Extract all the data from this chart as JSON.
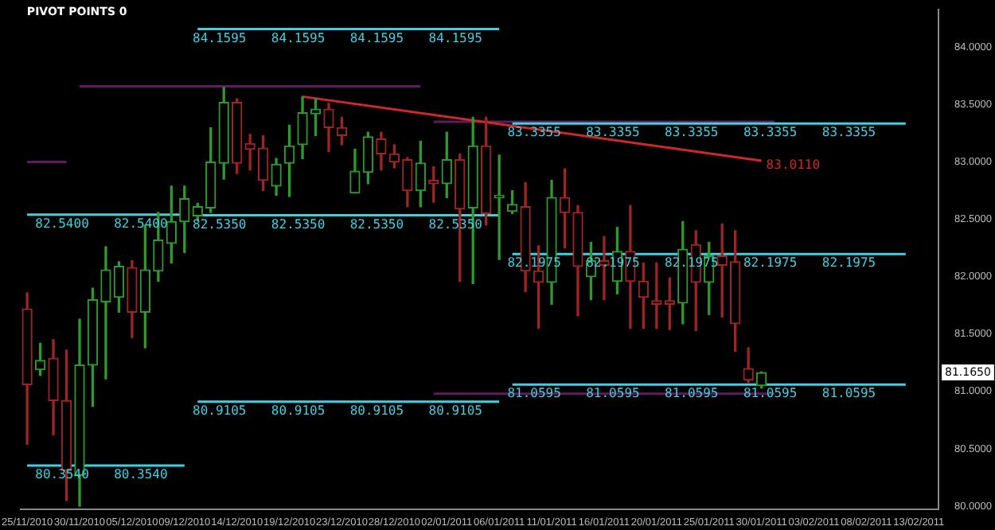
{
  "chart_data": {
    "type": "candlestick",
    "title": "PIVOT POINTS 0",
    "categories": [
      "25/11/2010",
      null,
      null,
      null,
      "30/11/2010",
      null,
      null,
      null,
      "05/12/2010",
      null,
      null,
      null,
      "09/12/2010",
      null,
      null,
      null,
      "14/12/2010",
      null,
      null,
      null,
      "19/12/2010",
      null,
      null,
      null,
      "23/12/2010",
      null,
      null,
      null,
      "28/12/2010",
      null,
      null,
      null,
      "02/01/2011",
      null,
      null,
      null,
      "06/01/2011",
      null,
      null,
      null,
      "11/01/2011",
      null,
      null,
      null,
      "16/01/2011",
      null,
      null,
      null,
      "20/01/2011",
      null,
      null,
      null,
      "25/01/2011",
      null,
      null,
      null,
      "30/01/2011",
      null,
      null,
      null,
      "03/02/2011",
      null,
      null,
      null,
      "08/02/2011",
      null,
      null,
      null,
      "13/02/2011",
      null
    ],
    "ohlc": [
      [
        81.72,
        81.86,
        80.54,
        81.06
      ],
      [
        81.19,
        81.42,
        81.14,
        81.27
      ],
      [
        81.29,
        81.45,
        80.62,
        80.92
      ],
      [
        80.92,
        81.36,
        80.05,
        80.31
      ],
      [
        80.27,
        81.63,
        80.0,
        81.23
      ],
      [
        81.23,
        81.9,
        80.87,
        81.8
      ],
      [
        81.78,
        82.26,
        81.11,
        82.06
      ],
      [
        81.82,
        82.13,
        81.69,
        82.09
      ],
      [
        82.08,
        82.14,
        81.47,
        81.69
      ],
      [
        81.69,
        82.45,
        81.38,
        82.06
      ],
      [
        82.05,
        82.56,
        81.96,
        82.32
      ],
      [
        82.29,
        82.79,
        82.12,
        82.48
      ],
      [
        82.48,
        82.79,
        82.21,
        82.68
      ],
      [
        82.53,
        82.64,
        82.49,
        82.61
      ],
      [
        82.6,
        83.3,
        82.56,
        83.0
      ],
      [
        82.99,
        83.65,
        82.85,
        83.52
      ],
      [
        83.52,
        83.55,
        82.9,
        82.99
      ],
      [
        83.16,
        83.24,
        82.93,
        83.11
      ],
      [
        83.12,
        83.23,
        82.75,
        82.84
      ],
      [
        82.79,
        83.03,
        82.71,
        82.98
      ],
      [
        82.99,
        83.32,
        82.7,
        83.14
      ],
      [
        83.15,
        83.57,
        83.03,
        83.43
      ],
      [
        83.42,
        83.55,
        83.23,
        83.46
      ],
      [
        83.46,
        83.51,
        83.09,
        83.3
      ],
      [
        83.3,
        83.39,
        83.15,
        83.23
      ],
      [
        82.73,
        83.11,
        82.73,
        82.92
      ],
      [
        82.91,
        83.26,
        82.81,
        83.22
      ],
      [
        83.2,
        83.26,
        82.93,
        83.07
      ],
      [
        83.07,
        83.15,
        82.95,
        83.0
      ],
      [
        83.02,
        83.04,
        82.61,
        82.75
      ],
      [
        82.75,
        83.18,
        82.61,
        82.99
      ],
      [
        82.84,
        82.96,
        82.65,
        82.81
      ],
      [
        82.81,
        83.26,
        82.69,
        83.02
      ],
      [
        83.02,
        83.07,
        81.96,
        82.59
      ],
      [
        82.6,
        83.39,
        81.94,
        83.14
      ],
      [
        83.14,
        83.39,
        82.45,
        82.55
      ],
      [
        82.69,
        83.06,
        82.15,
        82.71
      ],
      [
        82.57,
        82.75,
        82.55,
        82.63
      ],
      [
        82.61,
        82.82,
        81.87,
        82.05
      ],
      [
        82.05,
        82.27,
        81.55,
        81.95
      ],
      [
        81.95,
        82.84,
        81.76,
        82.69
      ],
      [
        82.69,
        82.94,
        82.25,
        82.56
      ],
      [
        82.56,
        82.62,
        81.66,
        82.09
      ],
      [
        82.0,
        82.3,
        81.8,
        82.14
      ],
      [
        82.14,
        82.35,
        81.8,
        82.1
      ],
      [
        81.96,
        82.43,
        81.85,
        82.22
      ],
      [
        82.22,
        82.62,
        81.55,
        81.96
      ],
      [
        81.96,
        82.12,
        81.55,
        81.82
      ],
      [
        81.79,
        82.12,
        81.55,
        81.76
      ],
      [
        81.79,
        81.99,
        81.54,
        81.76
      ],
      [
        81.77,
        82.48,
        81.59,
        82.24
      ],
      [
        82.28,
        82.4,
        81.53,
        81.95
      ],
      [
        81.95,
        82.3,
        81.67,
        82.18
      ],
      [
        82.18,
        82.46,
        81.65,
        82.1
      ],
      [
        82.13,
        82.4,
        81.35,
        81.59
      ],
      [
        81.2,
        81.38,
        81.08,
        81.1
      ],
      [
        81.05,
        81.17,
        81.03,
        81.165
      ],
      null,
      null,
      null,
      null,
      null,
      null,
      null,
      null,
      null,
      null,
      null,
      null,
      null
    ],
    "colors": [
      "#a02424",
      "#2e9a2e",
      "#a02424",
      "#a02424",
      "#2e9a2e",
      "#2e9a2e",
      "#2e9a2e",
      "#2e9a2e",
      "#a02424",
      "#2e9a2e",
      "#2e9a2e",
      "#2e9a2e",
      "#2e9a2e",
      "#2e9a2e",
      "#2e9a2e",
      "#2e9a2e",
      "#a02424",
      "#a02424",
      "#a02424",
      "#2e9a2e",
      "#2e9a2e",
      "#2e9a2e",
      "#2e9a2e",
      "#a02424",
      "#a02424",
      "#2e9a2e",
      "#2e9a2e",
      "#a02424",
      "#a02424",
      "#a02424",
      "#2e9a2e",
      "#a02424",
      "#2e9a2e",
      "#a02424",
      "#2e9a2e",
      "#a02424",
      "#2e9a2e",
      "#2e9a2e",
      "#a02424",
      "#a02424",
      "#2e9a2e",
      "#a02424",
      "#a02424",
      "#2e9a2e",
      "#a02424",
      "#2e9a2e",
      "#a02424",
      "#a02424",
      "#a02424",
      "#a02424",
      "#2e9a2e",
      "#a02424",
      "#2e9a2e",
      "#a02424",
      "#a02424",
      "#a02424",
      "#2e9a2e",
      null,
      null,
      null,
      null,
      null,
      null,
      null,
      null,
      null,
      null,
      null,
      null,
      null
    ],
    "ylim": [
      79.97,
      84.33
    ],
    "yticks": [
      {
        "value": 80,
        "label": "80.0000"
      },
      {
        "value": 80.5,
        "label": "80.5000"
      },
      {
        "value": 81,
        "label": "81.0000"
      },
      {
        "value": 81.5,
        "label": "81.5000"
      },
      {
        "value": 82,
        "label": "82.0000"
      },
      {
        "value": 82.5,
        "label": "82.5000"
      },
      {
        "value": 83,
        "label": "83.0000"
      },
      {
        "value": 83.5,
        "label": "83.5000"
      },
      {
        "value": 84,
        "label": "84.0000"
      }
    ],
    "grid": false,
    "legend": false,
    "annotations": [
      {
        "text": "81.1650",
        "y": 81.165
      }
    ],
    "series": [
      {
        "type": "line",
        "color": "#40d0e0",
        "values": [
          82.54,
          82.54,
          82.54,
          82.54,
          82.54,
          82.54,
          82.54,
          82.54,
          82.54,
          82.54,
          82.54,
          82.54,
          82.54,
          null,
          null,
          null,
          null,
          null,
          null,
          null,
          null,
          null,
          null,
          null,
          null,
          null,
          null,
          null,
          null,
          null,
          null,
          null,
          null,
          null,
          null,
          null,
          null,
          null,
          null,
          null,
          null,
          null,
          null,
          null,
          null,
          null,
          null,
          null,
          null,
          null,
          null,
          null,
          null,
          null,
          null,
          null,
          null,
          null,
          null,
          null,
          null,
          null,
          null,
          null,
          null,
          null,
          null,
          null,
          null,
          null
        ],
        "value_labels": [
          null,
          "82.5400",
          null,
          null,
          null,
          null,
          null,
          "82.5400",
          null,
          null,
          null,
          null,
          null,
          null,
          null,
          null,
          null,
          null,
          null,
          null,
          null,
          null,
          null,
          null,
          null,
          null,
          null,
          null,
          null,
          null,
          null,
          null,
          null,
          null,
          null,
          null,
          null,
          null,
          null,
          null,
          null,
          null,
          null,
          null,
          null,
          null,
          null,
          null,
          null,
          null,
          null,
          null,
          null,
          null,
          null,
          null,
          null,
          null,
          null,
          null,
          null,
          null,
          null,
          null,
          null,
          null,
          null,
          null,
          null,
          null
        ]
      },
      {
        "type": "line",
        "color": "#40d0e0",
        "values": [
          80.354,
          80.354,
          80.354,
          80.354,
          80.354,
          80.354,
          80.354,
          80.354,
          80.354,
          80.354,
          80.354,
          80.354,
          80.354,
          null,
          null,
          null,
          null,
          null,
          null,
          null,
          null,
          null,
          null,
          null,
          null,
          null,
          null,
          null,
          null,
          null,
          null,
          null,
          null,
          null,
          null,
          null,
          null,
          null,
          null,
          null,
          null,
          null,
          null,
          null,
          null,
          null,
          null,
          null,
          null,
          null,
          null,
          null,
          null,
          null,
          null,
          null,
          null,
          null,
          null,
          null,
          null,
          null,
          null,
          null,
          null,
          null,
          null,
          null,
          null,
          null
        ],
        "value_labels": [
          null,
          "80.3540",
          null,
          null,
          null,
          null,
          null,
          "80.3540",
          null,
          null,
          null,
          null,
          null,
          null,
          null,
          null,
          null,
          null,
          null,
          null,
          null,
          null,
          null,
          null,
          null,
          null,
          null,
          null,
          null,
          null,
          null,
          null,
          null,
          null,
          null,
          null,
          null,
          null,
          null,
          null,
          null,
          null,
          null,
          null,
          null,
          null,
          null,
          null,
          null,
          null,
          null,
          null,
          null,
          null,
          null,
          null,
          null,
          null,
          null,
          null,
          null,
          null,
          null,
          null,
          null,
          null,
          null,
          null,
          null,
          null
        ]
      },
      {
        "type": "line",
        "color": "#40d0e0",
        "values": [
          null,
          null,
          null,
          null,
          null,
          null,
          null,
          null,
          null,
          null,
          null,
          null,
          null,
          84.1595,
          84.1595,
          84.1595,
          84.1595,
          84.1595,
          84.1595,
          84.1595,
          84.1595,
          84.1595,
          84.1595,
          84.1595,
          84.1595,
          84.1595,
          84.1595,
          84.1595,
          84.1595,
          84.1595,
          84.1595,
          84.1595,
          84.1595,
          84.1595,
          84.1595,
          84.1595,
          84.1595,
          null,
          null,
          null,
          null,
          null,
          null,
          null,
          null,
          null,
          null,
          null,
          null,
          null,
          null,
          null,
          null,
          null,
          null,
          null,
          null,
          null,
          null,
          null,
          null,
          null,
          null,
          null,
          null,
          null,
          null,
          null,
          null,
          null
        ],
        "value_labels": [
          null,
          null,
          null,
          null,
          null,
          null,
          null,
          null,
          null,
          null,
          null,
          null,
          null,
          "84.1595",
          null,
          null,
          null,
          null,
          null,
          "84.1595",
          null,
          null,
          null,
          null,
          null,
          "84.1595",
          null,
          null,
          null,
          null,
          null,
          "84.1595",
          null,
          null,
          null,
          null,
          null,
          null,
          null,
          null,
          null,
          null,
          null,
          null,
          null,
          null,
          null,
          null,
          null,
          null,
          null,
          null,
          null,
          null,
          null,
          null,
          null,
          null,
          null,
          null,
          null,
          null,
          null,
          null,
          null,
          null,
          null,
          null,
          null,
          null
        ]
      },
      {
        "type": "line",
        "color": "#40d0e0",
        "values": [
          null,
          null,
          null,
          null,
          null,
          null,
          null,
          null,
          null,
          null,
          null,
          null,
          null,
          82.535,
          82.535,
          82.535,
          82.535,
          82.535,
          82.535,
          82.535,
          82.535,
          82.535,
          82.535,
          82.535,
          82.535,
          82.535,
          82.535,
          82.535,
          82.535,
          82.535,
          82.535,
          82.535,
          82.535,
          82.535,
          82.535,
          82.535,
          82.535,
          null,
          null,
          null,
          null,
          null,
          null,
          null,
          null,
          null,
          null,
          null,
          null,
          null,
          null,
          null,
          null,
          null,
          null,
          null,
          null,
          null,
          null,
          null,
          null,
          null,
          null,
          null,
          null,
          null,
          null,
          null,
          null,
          null
        ],
        "value_labels": [
          null,
          null,
          null,
          null,
          null,
          null,
          null,
          null,
          null,
          null,
          null,
          null,
          null,
          "82.5350",
          null,
          null,
          null,
          null,
          null,
          "82.5350",
          null,
          null,
          null,
          null,
          null,
          "82.5350",
          null,
          null,
          null,
          null,
          null,
          "82.5350",
          null,
          null,
          null,
          null,
          null,
          null,
          null,
          null,
          null,
          null,
          null,
          null,
          null,
          null,
          null,
          null,
          null,
          null,
          null,
          null,
          null,
          null,
          null,
          null,
          null,
          null,
          null,
          null,
          null,
          null,
          null,
          null,
          null,
          null,
          null,
          null,
          null,
          null
        ]
      },
      {
        "type": "line",
        "color": "#40d0e0",
        "values": [
          null,
          null,
          null,
          null,
          null,
          null,
          null,
          null,
          null,
          null,
          null,
          null,
          null,
          80.9105,
          80.9105,
          80.9105,
          80.9105,
          80.9105,
          80.9105,
          80.9105,
          80.9105,
          80.9105,
          80.9105,
          80.9105,
          80.9105,
          80.9105,
          80.9105,
          80.9105,
          80.9105,
          80.9105,
          80.9105,
          80.9105,
          80.9105,
          80.9105,
          80.9105,
          80.9105,
          80.9105,
          null,
          null,
          null,
          null,
          null,
          null,
          null,
          null,
          null,
          null,
          null,
          null,
          null,
          null,
          null,
          null,
          null,
          null,
          null,
          null,
          null,
          null,
          null,
          null,
          null,
          null,
          null,
          null,
          null,
          null,
          null,
          null,
          null
        ],
        "value_labels": [
          null,
          null,
          null,
          null,
          null,
          null,
          null,
          null,
          null,
          null,
          null,
          null,
          null,
          "80.9105",
          null,
          null,
          null,
          null,
          null,
          "80.9105",
          null,
          null,
          null,
          null,
          null,
          "80.9105",
          null,
          null,
          null,
          null,
          null,
          "80.9105",
          null,
          null,
          null,
          null,
          null,
          null,
          null,
          null,
          null,
          null,
          null,
          null,
          null,
          null,
          null,
          null,
          null,
          null,
          null,
          null,
          null,
          null,
          null,
          null,
          null,
          null,
          null,
          null,
          null,
          null,
          null,
          null,
          null,
          null,
          null,
          null,
          null,
          null
        ]
      },
      {
        "type": "line",
        "color": "#40d0e0",
        "values": [
          null,
          null,
          null,
          null,
          null,
          null,
          null,
          null,
          null,
          null,
          null,
          null,
          null,
          null,
          null,
          null,
          null,
          null,
          null,
          null,
          null,
          null,
          null,
          null,
          null,
          null,
          null,
          null,
          null,
          null,
          null,
          null,
          null,
          null,
          null,
          null,
          null,
          83.3355,
          83.3355,
          83.3355,
          83.3355,
          83.3355,
          83.3355,
          83.3355,
          83.3355,
          83.3355,
          83.3355,
          83.3355,
          83.3355,
          83.3355,
          83.3355,
          83.3355,
          83.3355,
          83.3355,
          83.3355,
          83.3355,
          83.3355,
          83.3355,
          83.3355,
          83.3355,
          83.3355,
          83.3355,
          83.3355,
          83.3355,
          83.3355,
          83.3355,
          83.3355,
          83.3355,
          null,
          null
        ],
        "value_labels": [
          null,
          null,
          null,
          null,
          null,
          null,
          null,
          null,
          null,
          null,
          null,
          null,
          null,
          null,
          null,
          null,
          null,
          null,
          null,
          null,
          null,
          null,
          null,
          null,
          null,
          null,
          null,
          null,
          null,
          null,
          null,
          null,
          null,
          null,
          null,
          null,
          null,
          "83.3355",
          null,
          null,
          null,
          null,
          null,
          "83.3355",
          null,
          null,
          null,
          null,
          null,
          "83.3355",
          null,
          null,
          null,
          null,
          null,
          "83.3355",
          null,
          null,
          null,
          null,
          null,
          "83.3355",
          null,
          null,
          null,
          null,
          null,
          null,
          null,
          null
        ]
      },
      {
        "type": "line",
        "color": "#40d0e0",
        "values": [
          null,
          null,
          null,
          null,
          null,
          null,
          null,
          null,
          null,
          null,
          null,
          null,
          null,
          null,
          null,
          null,
          null,
          null,
          null,
          null,
          null,
          null,
          null,
          null,
          null,
          null,
          null,
          null,
          null,
          null,
          null,
          null,
          null,
          null,
          null,
          null,
          null,
          82.1975,
          82.1975,
          82.1975,
          82.1975,
          82.1975,
          82.1975,
          82.1975,
          82.1975,
          82.1975,
          82.1975,
          82.1975,
          82.1975,
          82.1975,
          82.1975,
          82.1975,
          82.1975,
          82.1975,
          82.1975,
          82.1975,
          82.1975,
          82.1975,
          82.1975,
          82.1975,
          82.1975,
          82.1975,
          82.1975,
          82.1975,
          82.1975,
          82.1975,
          82.1975,
          82.1975,
          null,
          null
        ],
        "value_labels": [
          null,
          null,
          null,
          null,
          null,
          null,
          null,
          null,
          null,
          null,
          null,
          null,
          null,
          null,
          null,
          null,
          null,
          null,
          null,
          null,
          null,
          null,
          null,
          null,
          null,
          null,
          null,
          null,
          null,
          null,
          null,
          null,
          null,
          null,
          null,
          null,
          null,
          "82.1975",
          null,
          null,
          null,
          null,
          null,
          "82.1975",
          null,
          null,
          null,
          null,
          null,
          "82.1975",
          null,
          null,
          null,
          null,
          null,
          "82.1975",
          null,
          null,
          null,
          null,
          null,
          "82.1975",
          null,
          null,
          null,
          null,
          null,
          null,
          null,
          null
        ]
      },
      {
        "type": "line",
        "color": "#40d0e0",
        "values": [
          null,
          null,
          null,
          null,
          null,
          null,
          null,
          null,
          null,
          null,
          null,
          null,
          null,
          null,
          null,
          null,
          null,
          null,
          null,
          null,
          null,
          null,
          null,
          null,
          null,
          null,
          null,
          null,
          null,
          null,
          null,
          null,
          null,
          null,
          null,
          null,
          null,
          81.0595,
          81.0595,
          81.0595,
          81.0595,
          81.0595,
          81.0595,
          81.0595,
          81.0595,
          81.0595,
          81.0595,
          81.0595,
          81.0595,
          81.0595,
          81.0595,
          81.0595,
          81.0595,
          81.0595,
          81.0595,
          81.0595,
          81.0595,
          81.0595,
          81.0595,
          81.0595,
          81.0595,
          81.0595,
          81.0595,
          81.0595,
          81.0595,
          81.0595,
          81.0595,
          81.0595,
          null,
          null
        ],
        "value_labels": [
          null,
          null,
          null,
          null,
          null,
          null,
          null,
          null,
          null,
          null,
          null,
          null,
          null,
          null,
          null,
          null,
          null,
          null,
          null,
          null,
          null,
          null,
          null,
          null,
          null,
          null,
          null,
          null,
          null,
          null,
          null,
          null,
          null,
          null,
          null,
          null,
          null,
          "81.0595",
          null,
          null,
          null,
          null,
          null,
          "81.0595",
          null,
          null,
          null,
          null,
          null,
          "81.0595",
          null,
          null,
          null,
          null,
          null,
          "81.0595",
          null,
          null,
          null,
          null,
          null,
          "81.0595",
          null,
          null,
          null,
          null,
          null,
          null,
          null,
          null
        ]
      },
      {
        "type": "line",
        "color": "#d02828",
        "values": [
          null,
          null,
          null,
          null,
          null,
          null,
          null,
          null,
          null,
          null,
          null,
          null,
          null,
          null,
          null,
          null,
          null,
          null,
          null,
          null,
          null,
          83.57,
          null,
          null,
          null,
          null,
          null,
          null,
          null,
          null,
          null,
          null,
          null,
          null,
          null,
          null,
          null,
          null,
          null,
          null,
          null,
          null,
          null,
          null,
          null,
          null,
          null,
          null,
          null,
          null,
          null,
          null,
          null,
          null,
          null,
          null,
          83.011,
          null,
          null,
          null,
          null,
          null,
          null,
          null,
          null,
          null,
          null,
          null,
          null,
          null
        ],
        "value_labels": [
          null,
          null,
          null,
          null,
          null,
          null,
          null,
          null,
          null,
          null,
          null,
          null,
          null,
          null,
          null,
          null,
          null,
          null,
          null,
          null,
          null,
          null,
          null,
          null,
          null,
          null,
          null,
          null,
          null,
          null,
          null,
          null,
          null,
          null,
          null,
          null,
          null,
          null,
          null,
          null,
          null,
          null,
          null,
          null,
          null,
          null,
          null,
          null,
          null,
          null,
          null,
          null,
          null,
          null,
          null,
          null,
          "83.0110",
          null,
          null,
          null,
          null,
          null,
          null,
          null,
          null,
          null,
          null,
          null,
          null,
          null
        ]
      },
      {
        "type": "line",
        "color": "#5e1e5e",
        "values": [
          83.0,
          83.0,
          83.0,
          83.0,
          null,
          null,
          null,
          null,
          null,
          null,
          null,
          null,
          null,
          null,
          null,
          null,
          null,
          null,
          null,
          null,
          null,
          null,
          null,
          null,
          null,
          null,
          null,
          null,
          null,
          null,
          null,
          null,
          null,
          null,
          null,
          null,
          null,
          null,
          null,
          null,
          null,
          null,
          null,
          null,
          null,
          null,
          null,
          null,
          null,
          null,
          null,
          null,
          null,
          null,
          null,
          null,
          null,
          null,
          null,
          null,
          null,
          null,
          null,
          null,
          null,
          null,
          null,
          null,
          null,
          null
        ]
      },
      {
        "type": "line",
        "color": "#5e1e5e",
        "values": [
          null,
          null,
          null,
          null,
          83.66,
          83.66,
          83.66,
          83.66,
          83.66,
          83.66,
          83.66,
          83.66,
          83.66,
          83.66,
          83.66,
          83.66,
          83.66,
          83.66,
          83.66,
          83.66,
          83.66,
          83.66,
          83.66,
          83.66,
          83.66,
          83.66,
          83.66,
          83.66,
          83.66,
          83.66,
          83.66,
          null,
          null,
          null,
          null,
          null,
          null,
          null,
          null,
          null,
          null,
          null,
          null,
          null,
          null,
          null,
          null,
          null,
          null,
          null,
          null,
          null,
          null,
          null,
          null,
          null,
          null,
          null,
          null,
          null,
          null,
          null,
          null,
          null,
          null,
          null,
          null,
          null,
          null,
          null
        ]
      },
      {
        "type": "line",
        "color": "#5e1e5e",
        "values": [
          null,
          null,
          null,
          null,
          null,
          null,
          null,
          null,
          null,
          null,
          null,
          null,
          null,
          null,
          null,
          null,
          null,
          null,
          null,
          null,
          null,
          null,
          null,
          null,
          null,
          null,
          null,
          null,
          null,
          null,
          null,
          83.35,
          83.35,
          83.35,
          83.35,
          83.35,
          83.35,
          83.35,
          83.35,
          83.35,
          83.35,
          83.35,
          83.35,
          83.35,
          83.35,
          83.35,
          83.35,
          83.35,
          83.35,
          83.35,
          83.35,
          83.35,
          83.35,
          83.35,
          83.35,
          83.35,
          83.35,
          83.35,
          null,
          null,
          null,
          null,
          null,
          null,
          null,
          null,
          null,
          null,
          null,
          null
        ]
      },
      {
        "type": "line",
        "color": "#5e1e5e",
        "values": [
          null,
          null,
          null,
          null,
          null,
          null,
          null,
          null,
          null,
          null,
          null,
          null,
          null,
          null,
          null,
          null,
          null,
          null,
          null,
          null,
          null,
          null,
          null,
          null,
          null,
          null,
          null,
          null,
          null,
          null,
          null,
          80.98,
          80.98,
          80.98,
          80.98,
          80.98,
          80.98,
          80.98,
          80.98,
          80.98,
          80.98,
          80.98,
          80.98,
          80.98,
          80.98,
          80.98,
          80.98,
          80.98,
          80.98,
          80.98,
          80.98,
          80.98,
          80.98,
          80.98,
          80.98,
          80.98,
          80.98,
          80.98,
          null,
          null,
          null,
          null,
          null,
          null,
          null,
          null,
          null,
          null,
          null,
          null
        ]
      }
    ]
  }
}
